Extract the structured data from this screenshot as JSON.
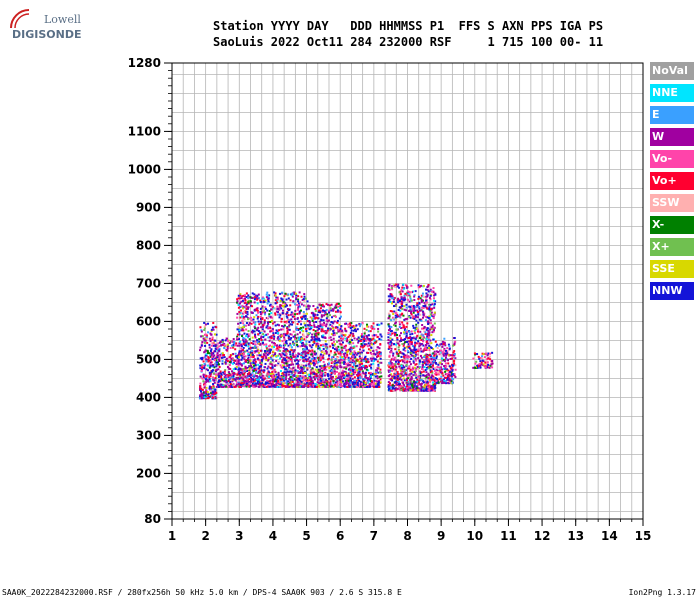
{
  "logo": {
    "line1": "Lowell",
    "line2": "DIGISONDE"
  },
  "header": {
    "line1": "Station YYYY DAY   DDD HHMMSS P1  FFS S AXN PPS IGA PS",
    "line2": "SaoLuis 2022 Oct11 284 232000 RSF     1 715 100 00- 11"
  },
  "legend": [
    {
      "label": "NoVal",
      "color": "#a0a0a0"
    },
    {
      "label": "NNE",
      "color": "#00e5ff"
    },
    {
      "label": "E",
      "color": "#3aa0ff"
    },
    {
      "label": "W",
      "color": "#a000a0"
    },
    {
      "label": "Vo-",
      "color": "#ff44aa"
    },
    {
      "label": "Vo+",
      "color": "#ff0030"
    },
    {
      "label": "SSW",
      "color": "#ffb0b0"
    },
    {
      "label": "X-",
      "color": "#008000"
    },
    {
      "label": "X+",
      "color": "#70c050"
    },
    {
      "label": "SSE",
      "color": "#d8d800"
    },
    {
      "label": "NNW",
      "color": "#1414d8"
    }
  ],
  "chart_data": {
    "type": "scatter",
    "x_ticks": [
      "1",
      "2",
      "3",
      "4",
      "5",
      "6",
      "7",
      "8",
      "9",
      "10",
      "11",
      "12",
      "13",
      "14",
      "15"
    ],
    "y_ticks": [
      "80",
      "200",
      "300",
      "400",
      "500",
      "600",
      "700",
      "800",
      "900",
      "1000",
      "1100",
      "1280"
    ],
    "xlim": [
      1,
      15
    ],
    "ylim": [
      80,
      1280
    ],
    "grid": true,
    "echo_blocks": [
      {
        "x": [
          1.8,
          2.3
        ],
        "y": [
          400,
          600
        ]
      },
      {
        "x": [
          2.3,
          2.9
        ],
        "y": [
          430,
          560
        ]
      },
      {
        "x": [
          2.9,
          5.0
        ],
        "y": [
          430,
          680
        ]
      },
      {
        "x": [
          5.0,
          6.0
        ],
        "y": [
          430,
          650
        ]
      },
      {
        "x": [
          6.0,
          7.2
        ],
        "y": [
          430,
          600
        ]
      },
      {
        "x": [
          7.4,
          8.8
        ],
        "y": [
          420,
          700
        ]
      },
      {
        "x": [
          8.8,
          9.4
        ],
        "y": [
          440,
          560
        ]
      },
      {
        "x": [
          9.9,
          10.5
        ],
        "y": [
          480,
          520
        ]
      }
    ]
  },
  "footer": {
    "left": "SAA0K_2022284232000.RSF / 280fx256h 50 kHz 5.0 km / DPS-4 SAA0K 903 / 2.6 S 315.8 E",
    "right": "Ion2Png 1.3.17"
  }
}
